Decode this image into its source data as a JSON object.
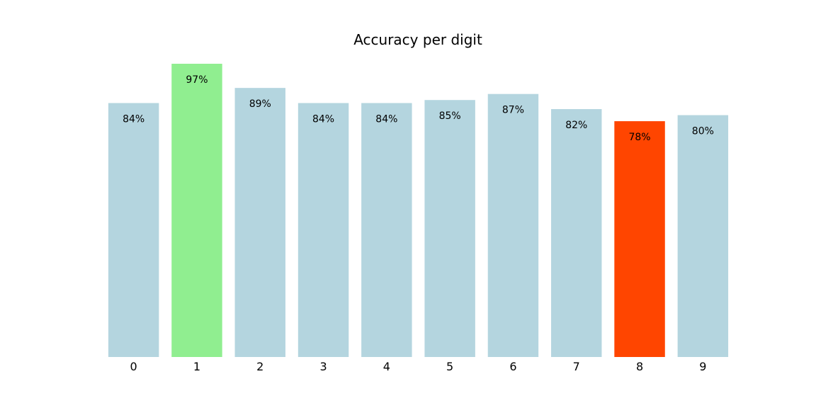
{
  "chart_data": {
    "type": "bar",
    "title": "Accuracy per digit",
    "xlabel": "",
    "ylabel": "",
    "categories": [
      "0",
      "1",
      "2",
      "3",
      "4",
      "5",
      "6",
      "7",
      "8",
      "9"
    ],
    "values": [
      84,
      97,
      89,
      84,
      84,
      85,
      87,
      82,
      78,
      80
    ],
    "value_labels": [
      "84%",
      "97%",
      "89%",
      "84%",
      "84%",
      "85%",
      "87%",
      "82%",
      "78%",
      "80%"
    ],
    "ylim": [
      0,
      97
    ],
    "grid": false,
    "legend": "none",
    "colors": {
      "default": "#b4d5df",
      "highest": "#90ee90",
      "lowest": "#ff4500"
    }
  }
}
